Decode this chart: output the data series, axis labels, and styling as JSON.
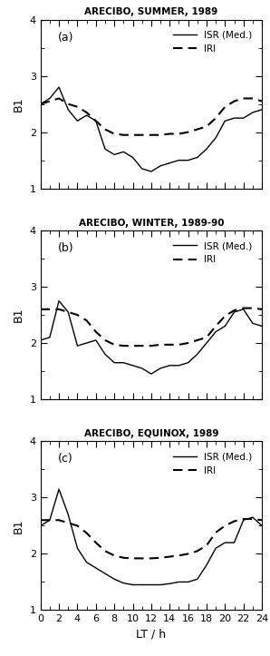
{
  "panels": [
    {
      "title": "ARECIBO, SUMMER, 1989",
      "label": "(a)",
      "isr": {
        "x": [
          0,
          1,
          2,
          3,
          4,
          5,
          6,
          7,
          8,
          9,
          10,
          11,
          12,
          13,
          14,
          15,
          16,
          17,
          18,
          19,
          20,
          21,
          22,
          23,
          24
        ],
        "y": [
          2.5,
          2.6,
          2.8,
          2.4,
          2.2,
          2.3,
          2.2,
          1.7,
          1.6,
          1.65,
          1.55,
          1.35,
          1.3,
          1.4,
          1.45,
          1.5,
          1.5,
          1.55,
          1.7,
          1.9,
          2.2,
          2.25,
          2.25,
          2.35,
          2.4
        ]
      },
      "iri": {
        "x": [
          0,
          1,
          2,
          3,
          4,
          5,
          6,
          7,
          8,
          9,
          10,
          11,
          12,
          13,
          14,
          15,
          16,
          17,
          18,
          19,
          20,
          21,
          22,
          23,
          24
        ],
        "y": [
          2.5,
          2.55,
          2.6,
          2.5,
          2.45,
          2.35,
          2.2,
          2.05,
          1.97,
          1.95,
          1.95,
          1.95,
          1.95,
          1.95,
          1.97,
          1.97,
          2.0,
          2.05,
          2.1,
          2.25,
          2.45,
          2.55,
          2.6,
          2.6,
          2.55
        ]
      }
    },
    {
      "title": "ARECIBO, WINTER, 1989-90",
      "label": "(b)",
      "isr": {
        "x": [
          0,
          1,
          2,
          3,
          4,
          5,
          6,
          7,
          8,
          9,
          10,
          11,
          12,
          13,
          14,
          15,
          16,
          17,
          18,
          19,
          20,
          21,
          22,
          23,
          24
        ],
        "y": [
          2.05,
          2.1,
          2.75,
          2.55,
          1.95,
          2.0,
          2.05,
          1.8,
          1.65,
          1.65,
          1.6,
          1.55,
          1.45,
          1.55,
          1.6,
          1.6,
          1.65,
          1.8,
          2.0,
          2.2,
          2.3,
          2.55,
          2.6,
          2.35,
          2.3
        ]
      },
      "iri": {
        "x": [
          0,
          1,
          2,
          3,
          4,
          5,
          6,
          7,
          8,
          9,
          10,
          11,
          12,
          13,
          14,
          15,
          16,
          17,
          18,
          19,
          20,
          21,
          22,
          23,
          24
        ],
        "y": [
          2.6,
          2.6,
          2.6,
          2.55,
          2.5,
          2.4,
          2.2,
          2.05,
          1.97,
          1.95,
          1.95,
          1.95,
          1.95,
          1.97,
          1.97,
          1.97,
          2.0,
          2.05,
          2.1,
          2.3,
          2.48,
          2.58,
          2.62,
          2.62,
          2.6
        ]
      }
    },
    {
      "title": "ARECIBO, EQUINOX, 1989",
      "label": "(c)",
      "isr": {
        "x": [
          0,
          1,
          2,
          3,
          4,
          5,
          6,
          7,
          8,
          9,
          10,
          11,
          12,
          13,
          14,
          15,
          16,
          17,
          18,
          19,
          20,
          21,
          22,
          23,
          24
        ],
        "y": [
          2.5,
          2.6,
          3.15,
          2.7,
          2.1,
          1.85,
          1.75,
          1.65,
          1.55,
          1.48,
          1.45,
          1.45,
          1.45,
          1.45,
          1.47,
          1.5,
          1.5,
          1.55,
          1.8,
          2.1,
          2.2,
          2.2,
          2.6,
          2.65,
          2.5
        ]
      },
      "iri": {
        "x": [
          0,
          1,
          2,
          3,
          4,
          5,
          6,
          7,
          8,
          9,
          10,
          11,
          12,
          13,
          14,
          15,
          16,
          17,
          18,
          19,
          20,
          21,
          22,
          23,
          24
        ],
        "y": [
          2.6,
          2.6,
          2.6,
          2.55,
          2.5,
          2.37,
          2.2,
          2.05,
          1.97,
          1.93,
          1.92,
          1.92,
          1.92,
          1.93,
          1.95,
          1.97,
          2.0,
          2.05,
          2.15,
          2.38,
          2.5,
          2.58,
          2.62,
          2.62,
          2.6
        ]
      }
    }
  ],
  "ylim": [
    1,
    4
  ],
  "xlim": [
    0,
    24
  ],
  "yticks": [
    1,
    2,
    3,
    4
  ],
  "xticks": [
    0,
    2,
    4,
    6,
    8,
    10,
    12,
    14,
    16,
    18,
    20,
    22,
    24
  ],
  "xlabel": "LT / h",
  "ylabel": "B1",
  "isr_color": "black",
  "iri_color": "black",
  "bg_color": "white",
  "legend_isr": "ISR (Med.)",
  "legend_iri": "IRI"
}
